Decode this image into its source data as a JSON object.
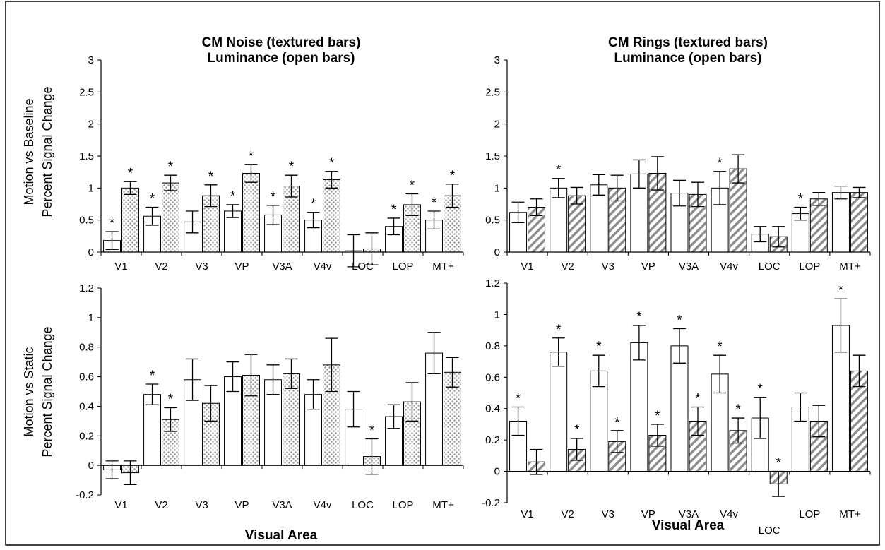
{
  "figure": {
    "xlabel": "Visual Area",
    "colors": {
      "stroke": "#000000",
      "background": "#ffffff",
      "noise_texture": "#9a9a9a",
      "rings_texture": "#8c8c8c"
    }
  },
  "chart_data": [
    {
      "type": "bar",
      "title_lines": [
        "CM  Noise  (textured bars)",
        "Luminance  (open bars)"
      ],
      "ylabel_lines": [
        "Motion vs Baseline",
        "Percent Signal Change"
      ],
      "xlabel": "",
      "categories": [
        "V1",
        "V2",
        "V3",
        "VP",
        "V3A",
        "V4v",
        "LOC",
        "LOP",
        "MT+"
      ],
      "yticks": [
        "0",
        "0.5",
        "1",
        "1.5",
        "2",
        "2.5",
        "3"
      ],
      "ylim": [
        0,
        3
      ],
      "grid": false,
      "series": [
        {
          "name": "Luminance (open bars)",
          "style": "open",
          "values": [
            0.18,
            0.56,
            0.47,
            0.64,
            0.58,
            0.5,
            0.02,
            0.4,
            0.5
          ],
          "errors": [
            0.14,
            0.14,
            0.17,
            0.1,
            0.15,
            0.12,
            0.25,
            0.13,
            0.14
          ],
          "significant": [
            true,
            true,
            false,
            true,
            true,
            true,
            false,
            true,
            true
          ]
        },
        {
          "name": "CM Noise (textured bars)",
          "style": "dots",
          "values": [
            1.0,
            1.08,
            0.88,
            1.23,
            1.03,
            1.13,
            0.05,
            0.74,
            0.88
          ],
          "errors": [
            0.1,
            0.12,
            0.17,
            0.14,
            0.17,
            0.13,
            0.25,
            0.17,
            0.18
          ],
          "significant": [
            true,
            true,
            true,
            true,
            true,
            true,
            false,
            true,
            true
          ]
        }
      ]
    },
    {
      "type": "bar",
      "title_lines": [
        "CM  Rings  (textured bars)",
        "Luminance  (open bars)"
      ],
      "ylabel_lines": [],
      "xlabel": "",
      "categories": [
        "V1",
        "V2",
        "V3",
        "VP",
        "V3A",
        "V4v",
        "LOC",
        "LOP",
        "MT+"
      ],
      "yticks": [
        "0",
        "0.5",
        "1",
        "1.5",
        "2",
        "2.5",
        "3"
      ],
      "ylim": [
        0,
        3
      ],
      "grid": false,
      "series": [
        {
          "name": "Luminance (open bars)",
          "style": "open",
          "values": [
            0.62,
            1.0,
            1.05,
            1.22,
            0.92,
            1.0,
            0.28,
            0.6,
            0.93
          ],
          "errors": [
            0.16,
            0.15,
            0.16,
            0.22,
            0.2,
            0.26,
            0.12,
            0.1,
            0.1
          ],
          "significant": [
            false,
            true,
            false,
            false,
            false,
            true,
            false,
            true,
            false
          ]
        },
        {
          "name": "CM Rings (textured bars)",
          "style": "hatch",
          "values": [
            0.7,
            0.88,
            1.0,
            1.23,
            0.9,
            1.3,
            0.24,
            0.83,
            0.93
          ],
          "errors": [
            0.13,
            0.13,
            0.2,
            0.26,
            0.19,
            0.22,
            0.16,
            0.1,
            0.08
          ],
          "significant": [
            false,
            false,
            false,
            false,
            false,
            false,
            false,
            false,
            false
          ]
        }
      ]
    },
    {
      "type": "bar",
      "title_lines": [],
      "ylabel_lines": [
        "Motion vs Static",
        "Percent Signal Change"
      ],
      "xlabel": "Visual Area",
      "categories": [
        "V1",
        "V2",
        "V3",
        "VP",
        "V3A",
        "V4v",
        "LOC",
        "LOP",
        "MT+"
      ],
      "yticks": [
        "-0.2",
        "0",
        "0.2",
        "0.4",
        "0.6",
        "0.8",
        "1",
        "1.2"
      ],
      "ylim": [
        -0.2,
        1.2
      ],
      "grid": false,
      "series": [
        {
          "name": "Luminance (open bars)",
          "style": "open",
          "values": [
            -0.03,
            0.48,
            0.58,
            0.6,
            0.58,
            0.48,
            0.38,
            0.33,
            0.76
          ],
          "errors": [
            0.06,
            0.07,
            0.14,
            0.1,
            0.1,
            0.1,
            0.12,
            0.08,
            0.14
          ],
          "significant": [
            false,
            true,
            false,
            false,
            false,
            false,
            false,
            false,
            false
          ]
        },
        {
          "name": "CM Noise (textured bars)",
          "style": "dots",
          "values": [
            -0.05,
            0.31,
            0.42,
            0.61,
            0.62,
            0.68,
            0.06,
            0.43,
            0.63
          ],
          "errors": [
            0.08,
            0.08,
            0.12,
            0.14,
            0.1,
            0.18,
            0.12,
            0.13,
            0.1
          ],
          "significant": [
            false,
            true,
            false,
            false,
            false,
            false,
            true,
            false,
            false
          ]
        }
      ]
    },
    {
      "type": "bar",
      "title_lines": [],
      "ylabel_lines": [],
      "xlabel": "Visual Area",
      "categories": [
        "V1",
        "V2",
        "V3",
        "VP",
        "V3A",
        "V4v",
        "LOC",
        "LOP",
        "MT+"
      ],
      "yticks": [
        "-0.2",
        "0",
        "0.2",
        "0.4",
        "0.6",
        "0.8",
        "1",
        "1.2"
      ],
      "ylim": [
        -0.2,
        1.2
      ],
      "grid": false,
      "series": [
        {
          "name": "Luminance (open bars)",
          "style": "open",
          "values": [
            0.32,
            0.76,
            0.64,
            0.82,
            0.8,
            0.62,
            0.34,
            0.41,
            0.93
          ],
          "errors": [
            0.09,
            0.09,
            0.1,
            0.11,
            0.11,
            0.12,
            0.13,
            0.09,
            0.17
          ],
          "significant": [
            true,
            true,
            true,
            true,
            true,
            true,
            true,
            false,
            true
          ]
        },
        {
          "name": "CM Rings (textured bars)",
          "style": "hatch",
          "values": [
            0.06,
            0.14,
            0.19,
            0.23,
            0.32,
            0.26,
            -0.08,
            0.32,
            0.64
          ],
          "errors": [
            0.08,
            0.07,
            0.07,
            0.07,
            0.09,
            0.08,
            0.08,
            0.1,
            0.1
          ],
          "significant": [
            false,
            true,
            true,
            true,
            true,
            true,
            true,
            false,
            false
          ]
        }
      ]
    }
  ]
}
